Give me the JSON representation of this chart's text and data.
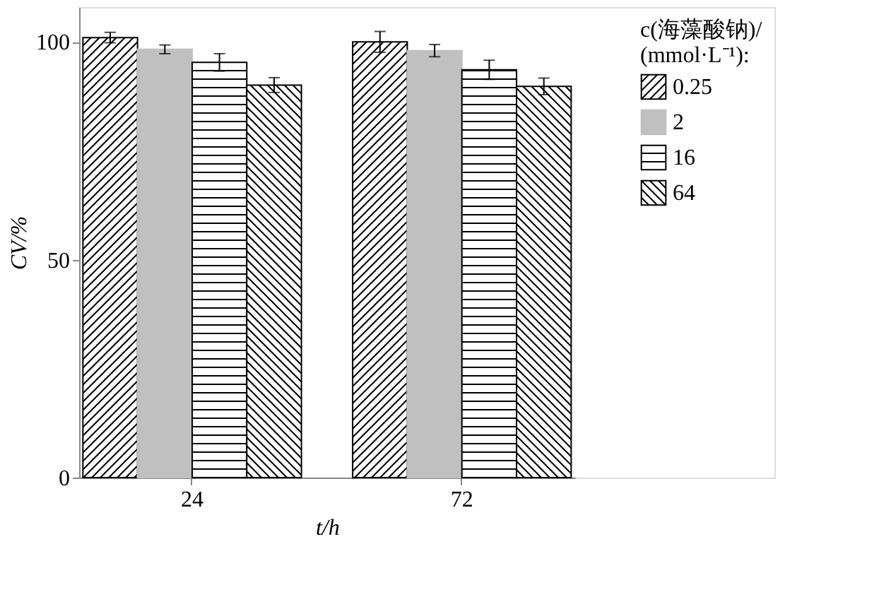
{
  "chart_data": {
    "type": "bar",
    "xlabel": "t/h",
    "ylabel": "CV/%",
    "legend_title": "c(海藻酸钠)/\n(mmol·L⁻¹):",
    "categories": [
      "24",
      "72"
    ],
    "ylim": [
      0,
      108
    ],
    "yticks": [
      0,
      50,
      100
    ],
    "grid": false,
    "legend": "top right",
    "series": [
      {
        "name": "0.25",
        "color": "#000000",
        "values": [
          101,
          100
        ],
        "errors": [
          1.2,
          2.4
        ]
      },
      {
        "name": "2",
        "color": "#c0c0c0",
        "values": [
          98.3,
          98
        ],
        "errors": [
          1,
          1.4
        ]
      },
      {
        "name": "16",
        "color": "#000000",
        "values": [
          95.3,
          93.6
        ],
        "errors": [
          2,
          2.2
        ]
      },
      {
        "name": "64",
        "color": "#000000",
        "values": [
          90.1,
          89.8
        ],
        "errors": [
          1.7,
          1.9
        ]
      }
    ]
  }
}
